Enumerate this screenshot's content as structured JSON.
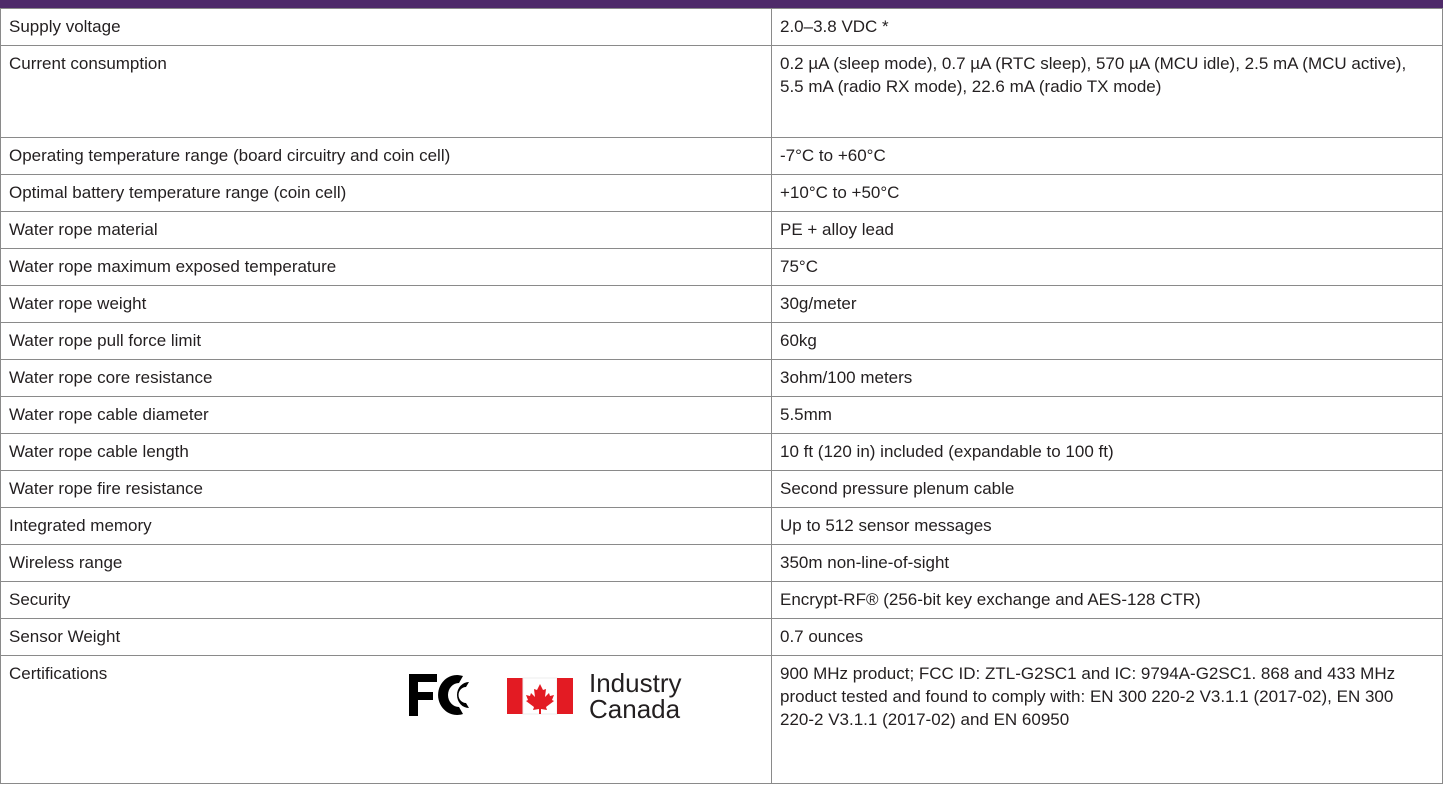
{
  "table": {
    "rows": [
      [
        "Supply voltage",
        "2.0–3.8 VDC *"
      ],
      [
        "Current consumption",
        "0.2 µA (sleep mode), 0.7 µA (RTC sleep), 570 µA (MCU idle), 2.5 mA (MCU active), 5.5 mA (radio RX mode), 22.6 mA (radio TX mode)"
      ],
      [
        "Operating temperature range (board circuitry and coin cell)",
        "-7°C to +60°C"
      ],
      [
        "Optimal battery temperature range (coin cell)",
        "+10°C to +50°C"
      ],
      [
        "Water rope material",
        "PE + alloy lead"
      ],
      [
        "Water rope maximum exposed temperature",
        "75°C"
      ],
      [
        "Water rope weight",
        "30g/meter"
      ],
      [
        "Water rope pull force limit",
        "60kg"
      ],
      [
        "Water rope core resistance",
        "3ohm/100 meters"
      ],
      [
        "Water rope cable diameter",
        "5.5mm"
      ],
      [
        "Water rope cable length",
        "10 ft (120 in) included (expandable to 100 ft)"
      ],
      [
        "Water rope fire resistance",
        "Second pressure plenum cable"
      ],
      [
        "Integrated memory",
        "Up to 512 sensor messages"
      ],
      [
        "Wireless range",
        "350m non-line-of-sight"
      ],
      [
        "Security",
        "Encrypt-RF® (256-bit key exchange and AES-128 CTR)"
      ],
      [
        "Sensor Weight",
        "0.7 ounces"
      ],
      [
        "Certifications",
        "900 MHz product; FCC ID: ZTL-G2SC1 and IC: 9794A-G2SC1. 868 and 433 MHz product tested and found to comply with: EN 300 220-2 V3.1.1 (2017-02), EN 300 220-2 V3.1.1 (2017-02) and EN 60950"
      ]
    ],
    "logo_text": [
      "Industry",
      "Canada"
    ]
  }
}
